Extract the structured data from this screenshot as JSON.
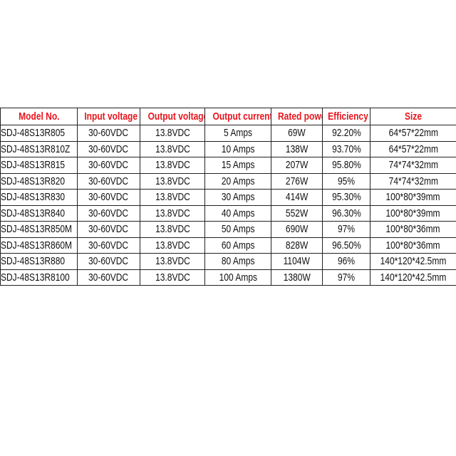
{
  "colors": {
    "header_text": "#e8141c",
    "body_text": "#111111",
    "border": "#222222"
  },
  "table": {
    "headers": [
      "Model No.",
      "Input voltage",
      "Output voltage",
      "Output current",
      "Rated power",
      "Efficiency",
      "Size"
    ],
    "rows": [
      [
        "SDJ-48S13R805",
        "30-60VDC",
        "13.8VDC",
        "5 Amps",
        "69W",
        "92.20%",
        "64*57*22mm"
      ],
      [
        "SDJ-48S13R810Z",
        "30-60VDC",
        "13.8VDC",
        "10 Amps",
        "138W",
        "93.70%",
        "64*57*22mm"
      ],
      [
        "SDJ-48S13R815",
        "30-60VDC",
        "13.8VDC",
        "15 Amps",
        "207W",
        "95.80%",
        "74*74*32mm"
      ],
      [
        "SDJ-48S13R820",
        "30-60VDC",
        "13.8VDC",
        "20 Amps",
        "276W",
        "95%",
        "74*74*32mm"
      ],
      [
        "SDJ-48S13R830",
        "30-60VDC",
        "13.8VDC",
        "30 Amps",
        "414W",
        "95.30%",
        "100*80*39mm"
      ],
      [
        "SDJ-48S13R840",
        "30-60VDC",
        "13.8VDC",
        "40 Amps",
        "552W",
        "96.30%",
        "100*80*39mm"
      ],
      [
        "SDJ-48S13R850M",
        "30-60VDC",
        "13.8VDC",
        "50 Amps",
        "690W",
        "97%",
        "100*80*36mm"
      ],
      [
        "SDJ-48S13R860M",
        "30-60VDC",
        "13.8VDC",
        "60 Amps",
        "828W",
        "96.50%",
        "100*80*36mm"
      ],
      [
        "SDJ-48S13R880",
        "30-60VDC",
        "13.8VDC",
        "80 Amps",
        "1104W",
        "96%",
        "140*120*42.5mm"
      ],
      [
        "SDJ-48S13R8100",
        "30-60VDC",
        "13.8VDC",
        "100 Amps",
        "1380W",
        "97%",
        "140*120*42.5mm"
      ]
    ]
  }
}
